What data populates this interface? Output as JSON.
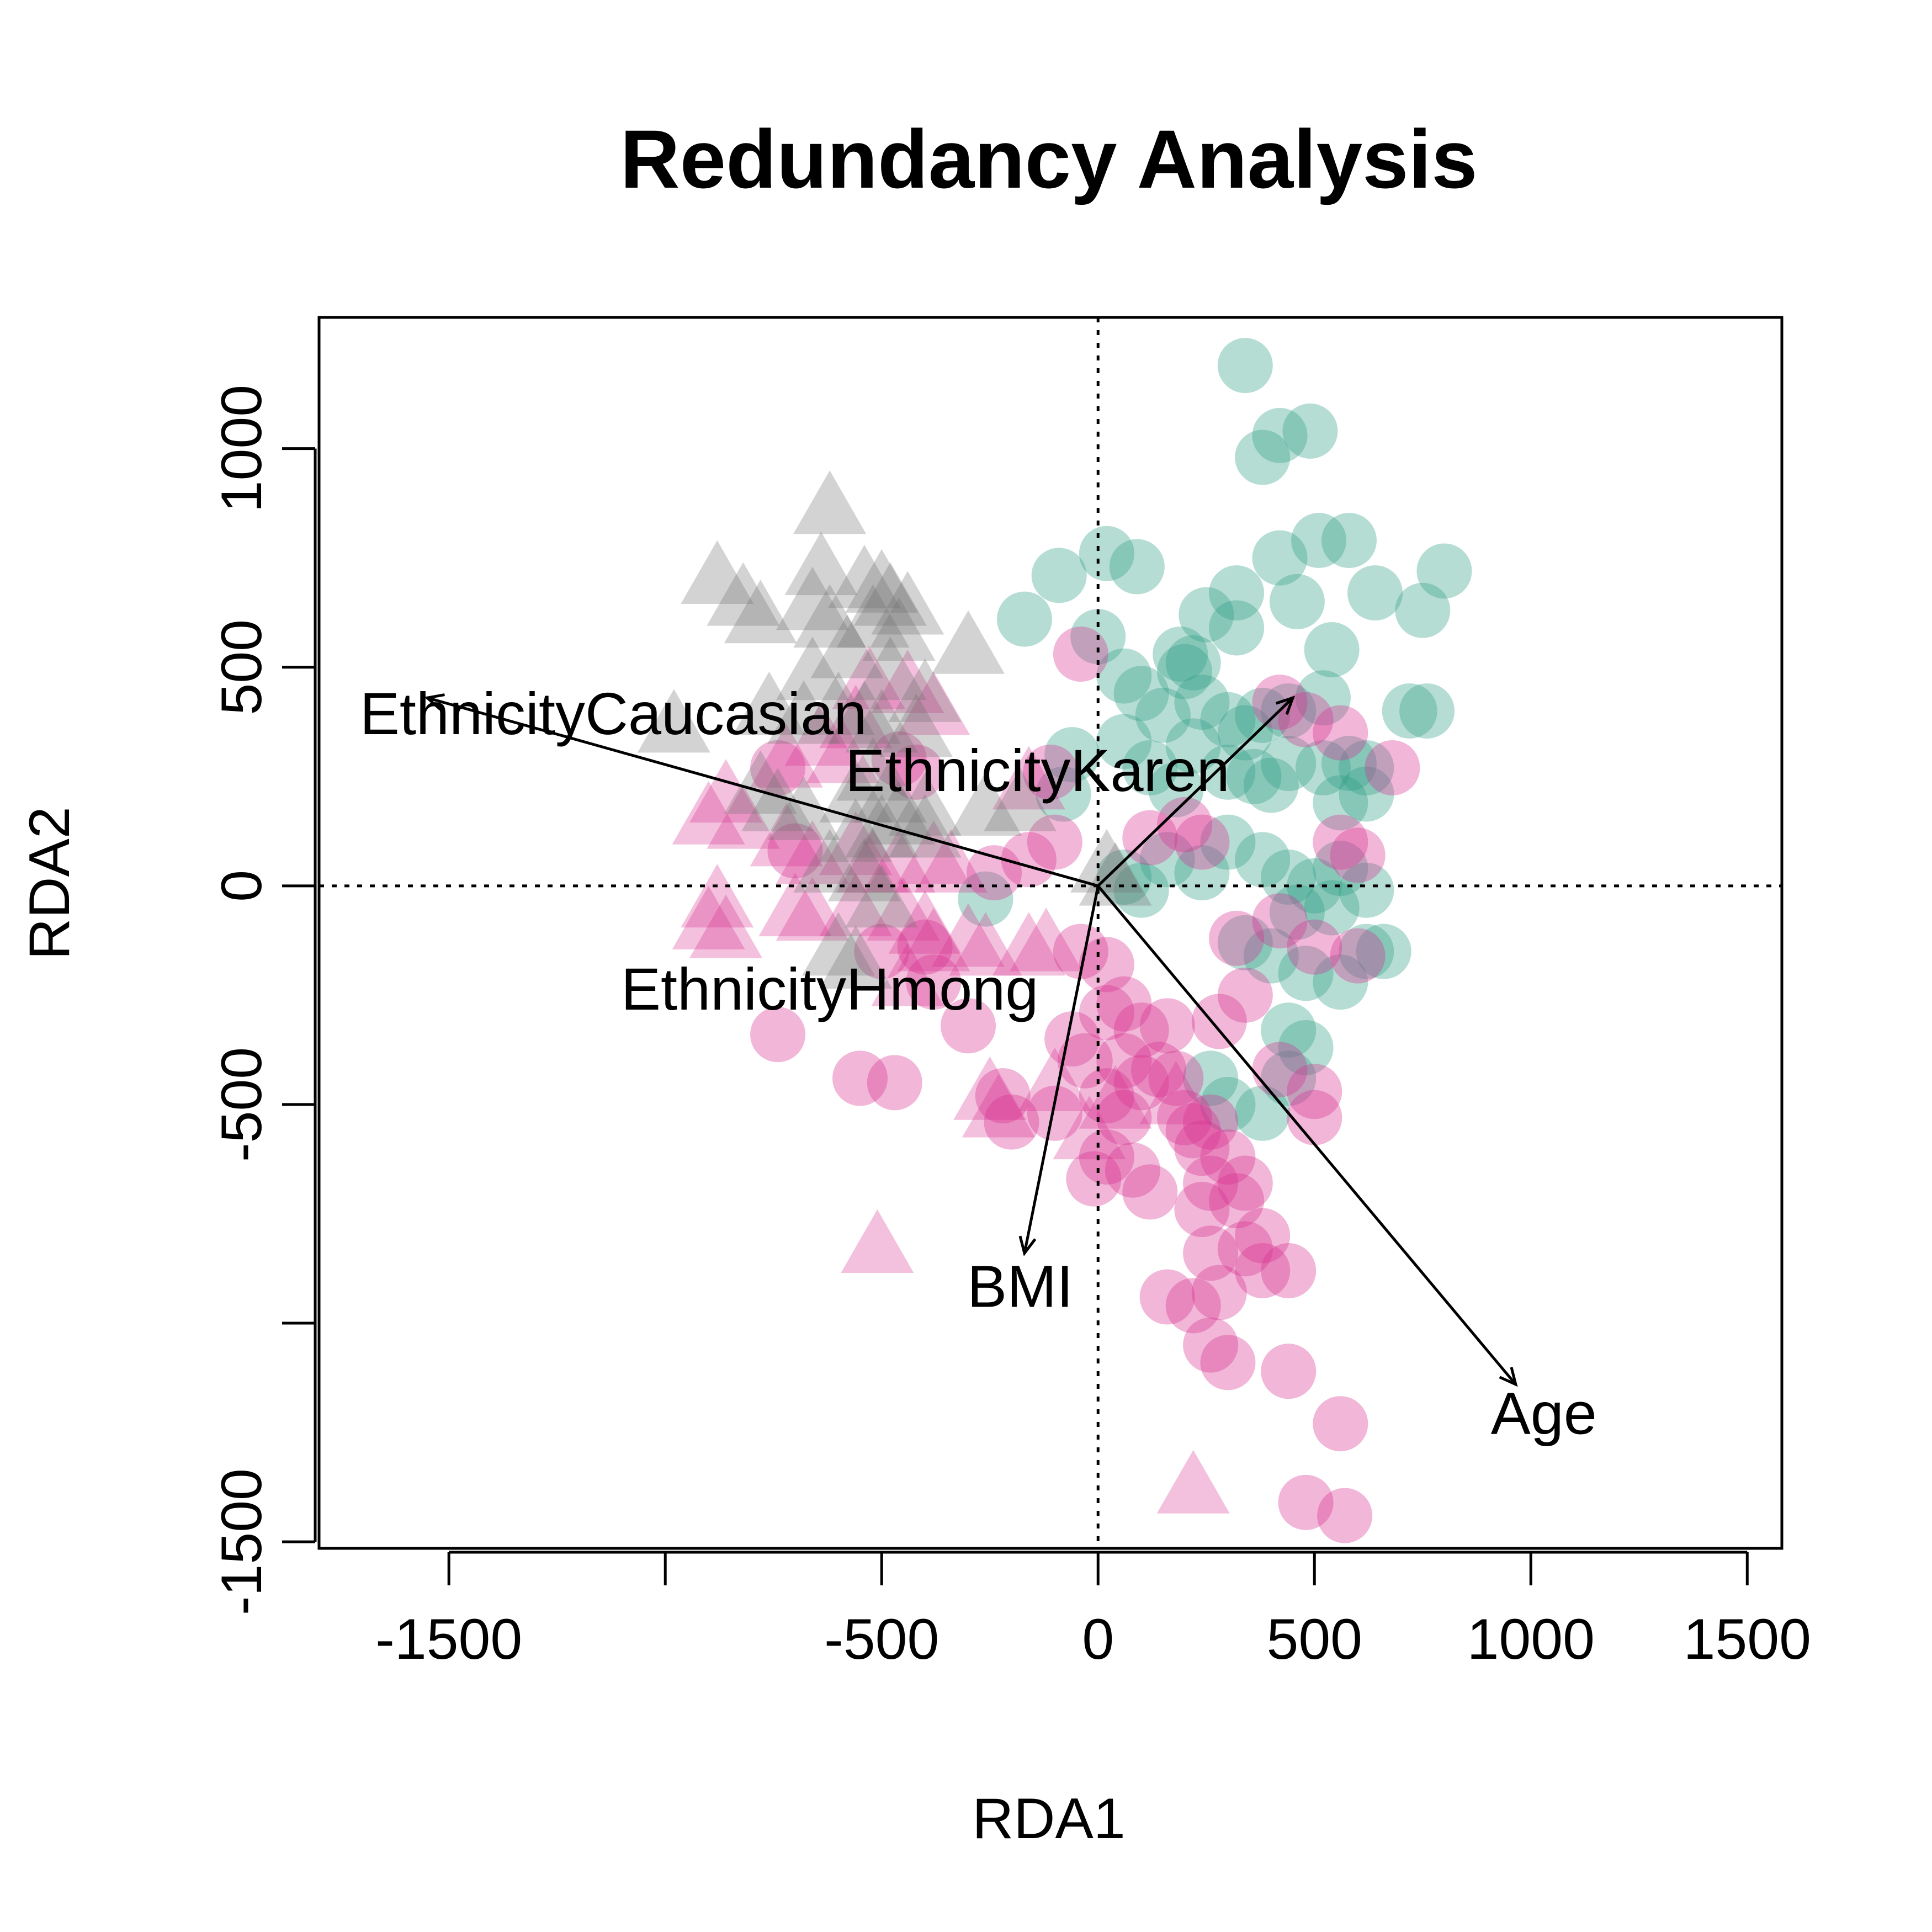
{
  "chart_data": {
    "type": "scatter",
    "title": "Redundancy Analysis",
    "xlabel": "RDA1",
    "ylabel": "RDA2",
    "xlim": [
      -1800,
      1580
    ],
    "ylim": [
      -1515,
      1300
    ],
    "x_ticks": [
      -1500,
      -1000,
      -500,
      0,
      500,
      1000,
      1500
    ],
    "x_tick_labels": [
      "-1500",
      "",
      "-500",
      "0",
      "500",
      "1000",
      "1500"
    ],
    "y_ticks": [
      -1500,
      -1000,
      -500,
      0,
      500,
      1000
    ],
    "y_tick_labels": [
      "-1500",
      "",
      "-500",
      "0",
      "500",
      "1000"
    ],
    "reference_lines": {
      "x": 0,
      "y": 0,
      "style": "dotted"
    },
    "colors": {
      "teal": "#2f9e85",
      "magenta": "#d62f8f",
      "gray": "#6e6e6e"
    },
    "series": [
      {
        "marker": "circle",
        "color": "#2f9e85",
        "points": [
          [
            340,
            1190
          ],
          [
            380,
            980
          ],
          [
            420,
            1030
          ],
          [
            490,
            1040
          ],
          [
            20,
            760
          ],
          [
            90,
            730
          ],
          [
            -90,
            710
          ],
          [
            -170,
            610
          ],
          [
            420,
            750
          ],
          [
            510,
            790
          ],
          [
            580,
            790
          ],
          [
            320,
            670
          ],
          [
            460,
            650
          ],
          [
            640,
            670
          ],
          [
            800,
            720
          ],
          [
            750,
            630
          ],
          [
            250,
            620
          ],
          [
            320,
            590
          ],
          [
            220,
            510
          ],
          [
            0,
            570
          ],
          [
            540,
            540
          ],
          [
            60,
            480
          ],
          [
            100,
            440
          ],
          [
            150,
            390
          ],
          [
            190,
            530
          ],
          [
            200,
            490
          ],
          [
            240,
            420
          ],
          [
            300,
            380
          ],
          [
            340,
            350
          ],
          [
            380,
            390
          ],
          [
            440,
            400
          ],
          [
            520,
            430
          ],
          [
            720,
            400
          ],
          [
            760,
            400
          ],
          [
            -60,
            300
          ],
          [
            -80,
            210
          ],
          [
            60,
            330
          ],
          [
            120,
            270
          ],
          [
            180,
            220
          ],
          [
            220,
            320
          ],
          [
            300,
            260
          ],
          [
            360,
            250
          ],
          [
            400,
            230
          ],
          [
            440,
            280
          ],
          [
            520,
            270
          ],
          [
            580,
            280
          ],
          [
            620,
            270
          ],
          [
            620,
            210
          ],
          [
            560,
            190
          ],
          [
            60,
            20
          ],
          [
            100,
            -10
          ],
          [
            160,
            60
          ],
          [
            240,
            30
          ],
          [
            300,
            100
          ],
          [
            380,
            60
          ],
          [
            440,
            20
          ],
          [
            500,
            0
          ],
          [
            560,
            40
          ],
          [
            620,
            -10
          ],
          [
            460,
            -60
          ],
          [
            540,
            -50
          ],
          [
            340,
            -130
          ],
          [
            400,
            -160
          ],
          [
            480,
            -200
          ],
          [
            560,
            -220
          ],
          [
            620,
            -150
          ],
          [
            660,
            -150
          ],
          [
            440,
            -330
          ],
          [
            480,
            -370
          ],
          [
            260,
            -440
          ],
          [
            300,
            -500
          ],
          [
            380,
            -520
          ],
          [
            440,
            -440
          ],
          [
            -260,
            -30
          ]
        ]
      },
      {
        "marker": "circle",
        "color": "#d62f8f",
        "points": [
          [
            -40,
            530
          ],
          [
            -110,
            260
          ],
          [
            -460,
            290
          ],
          [
            -420,
            260
          ],
          [
            -700,
            80
          ],
          [
            -740,
            270
          ],
          [
            -240,
            30
          ],
          [
            -160,
            60
          ],
          [
            -100,
            100
          ],
          [
            120,
            110
          ],
          [
            200,
            140
          ],
          [
            240,
            100
          ],
          [
            420,
            420
          ],
          [
            480,
            380
          ],
          [
            560,
            350
          ],
          [
            560,
            100
          ],
          [
            600,
            70
          ],
          [
            680,
            270
          ],
          [
            -500,
            -150
          ],
          [
            -400,
            -140
          ],
          [
            -380,
            -220
          ],
          [
            -300,
            -320
          ],
          [
            -740,
            -340
          ],
          [
            -550,
            -440
          ],
          [
            -470,
            -450
          ],
          [
            -220,
            -480
          ],
          [
            -200,
            -540
          ],
          [
            -100,
            -520
          ],
          [
            -60,
            -350
          ],
          [
            -30,
            -400
          ],
          [
            -40,
            -150
          ],
          [
            20,
            -180
          ],
          [
            20,
            -290
          ],
          [
            60,
            -270
          ],
          [
            100,
            -330
          ],
          [
            160,
            -320
          ],
          [
            60,
            -400
          ],
          [
            100,
            -450
          ],
          [
            140,
            -420
          ],
          [
            180,
            -440
          ],
          [
            20,
            -480
          ],
          [
            60,
            -530
          ],
          [
            200,
            -530
          ],
          [
            220,
            -560
          ],
          [
            260,
            -540
          ],
          [
            240,
            -600
          ],
          [
            300,
            -620
          ],
          [
            260,
            -680
          ],
          [
            340,
            -680
          ],
          [
            320,
            -720
          ],
          [
            20,
            -620
          ],
          [
            80,
            -650
          ],
          [
            -10,
            -670
          ],
          [
            120,
            -700
          ],
          [
            240,
            -740
          ],
          [
            260,
            -840
          ],
          [
            340,
            -830
          ],
          [
            380,
            -800
          ],
          [
            380,
            -880
          ],
          [
            440,
            -880
          ],
          [
            160,
            -940
          ],
          [
            220,
            -960
          ],
          [
            280,
            -930
          ],
          [
            260,
            -1050
          ],
          [
            300,
            -1090
          ],
          [
            440,
            -1110
          ],
          [
            560,
            -1230
          ],
          [
            480,
            -1410
          ],
          [
            570,
            -1440
          ],
          [
            320,
            -120
          ],
          [
            420,
            -80
          ],
          [
            500,
            -140
          ],
          [
            600,
            -160
          ],
          [
            420,
            -420
          ],
          [
            500,
            -470
          ],
          [
            500,
            -530
          ],
          [
            340,
            -250
          ],
          [
            280,
            -310
          ]
        ]
      },
      {
        "marker": "triangle",
        "color": "#d62f8f",
        "points": [
          [
            -530,
            460
          ],
          [
            -560,
            370
          ],
          [
            -640,
            330
          ],
          [
            -720,
            280
          ],
          [
            -590,
            290
          ],
          [
            -440,
            450
          ],
          [
            -380,
            400
          ],
          [
            -160,
            230
          ],
          [
            -860,
            200
          ],
          [
            -900,
            150
          ],
          [
            -820,
            140
          ],
          [
            -720,
            100
          ],
          [
            -660,
            60
          ],
          [
            -560,
            80
          ],
          [
            -520,
            40
          ],
          [
            -460,
            40
          ],
          [
            -380,
            60
          ],
          [
            -340,
            40
          ],
          [
            -880,
            -40
          ],
          [
            -900,
            -90
          ],
          [
            -860,
            -110
          ],
          [
            -700,
            -60
          ],
          [
            -660,
            -70
          ],
          [
            -560,
            -60
          ],
          [
            -450,
            -70
          ],
          [
            -400,
            -100
          ],
          [
            -380,
            -140
          ],
          [
            -300,
            -130
          ],
          [
            -260,
            -150
          ],
          [
            -160,
            -150
          ],
          [
            -120,
            -140
          ],
          [
            -440,
            -220
          ],
          [
            -250,
            -480
          ],
          [
            -230,
            -520
          ],
          [
            -100,
            -460
          ],
          [
            -20,
            -570
          ],
          [
            40,
            -500
          ],
          [
            180,
            -490
          ],
          [
            -510,
            -830
          ],
          [
            220,
            -1380
          ]
        ]
      },
      {
        "marker": "triangle",
        "color": "#6e6e6e",
        "points": [
          [
            -620,
            860
          ],
          [
            -880,
            700
          ],
          [
            -820,
            650
          ],
          [
            -780,
            610
          ],
          [
            -660,
            640
          ],
          [
            -640,
            720
          ],
          [
            -620,
            600
          ],
          [
            -540,
            690
          ],
          [
            -500,
            680
          ],
          [
            -480,
            650
          ],
          [
            -440,
            630
          ],
          [
            -520,
            600
          ],
          [
            -460,
            570
          ],
          [
            -300,
            540
          ],
          [
            -580,
            530
          ],
          [
            -660,
            480
          ],
          [
            -480,
            480
          ],
          [
            -400,
            430
          ],
          [
            -760,
            400
          ],
          [
            -680,
            380
          ],
          [
            -600,
            400
          ],
          [
            -540,
            380
          ],
          [
            -500,
            360
          ],
          [
            -420,
            350
          ],
          [
            -980,
            360
          ],
          [
            -780,
            220
          ],
          [
            -740,
            180
          ],
          [
            -680,
            160
          ],
          [
            -560,
            200
          ],
          [
            -520,
            250
          ],
          [
            -480,
            200
          ],
          [
            -460,
            150
          ],
          [
            -400,
            170
          ],
          [
            -560,
            110
          ],
          [
            -500,
            120
          ],
          [
            -400,
            120
          ],
          [
            -260,
            170
          ],
          [
            -180,
            180
          ],
          [
            -620,
            40
          ],
          [
            -540,
            20
          ],
          [
            -500,
            -40
          ],
          [
            -600,
            -150
          ],
          [
            -560,
            -180
          ],
          [
            20,
            40
          ],
          [
            40,
            10
          ]
        ]
      }
    ],
    "vectors": [
      {
        "label": "BMI",
        "x": -170,
        "y": -840
      },
      {
        "label": "Age",
        "x": 965,
        "y": -1140
      },
      {
        "label": "EthnicityCaucasian",
        "x": -1550,
        "y": 430
      },
      {
        "label": "EthnicityKaren",
        "x": 450,
        "y": 430
      },
      {
        "label": "EthnicityHmong",
        "x": 0,
        "y": 0
      }
    ],
    "vector_labels": [
      "BMI",
      "Age",
      "EthnicityCaucasian",
      "EthnicityKaren",
      "EthnicityHmong"
    ],
    "vector_label_positions": [
      [
        -180,
        -915
      ],
      [
        1030,
        -1205
      ],
      [
        -1120,
        395
      ],
      [
        -140,
        265
      ],
      [
        -620,
        -235
      ]
    ]
  }
}
